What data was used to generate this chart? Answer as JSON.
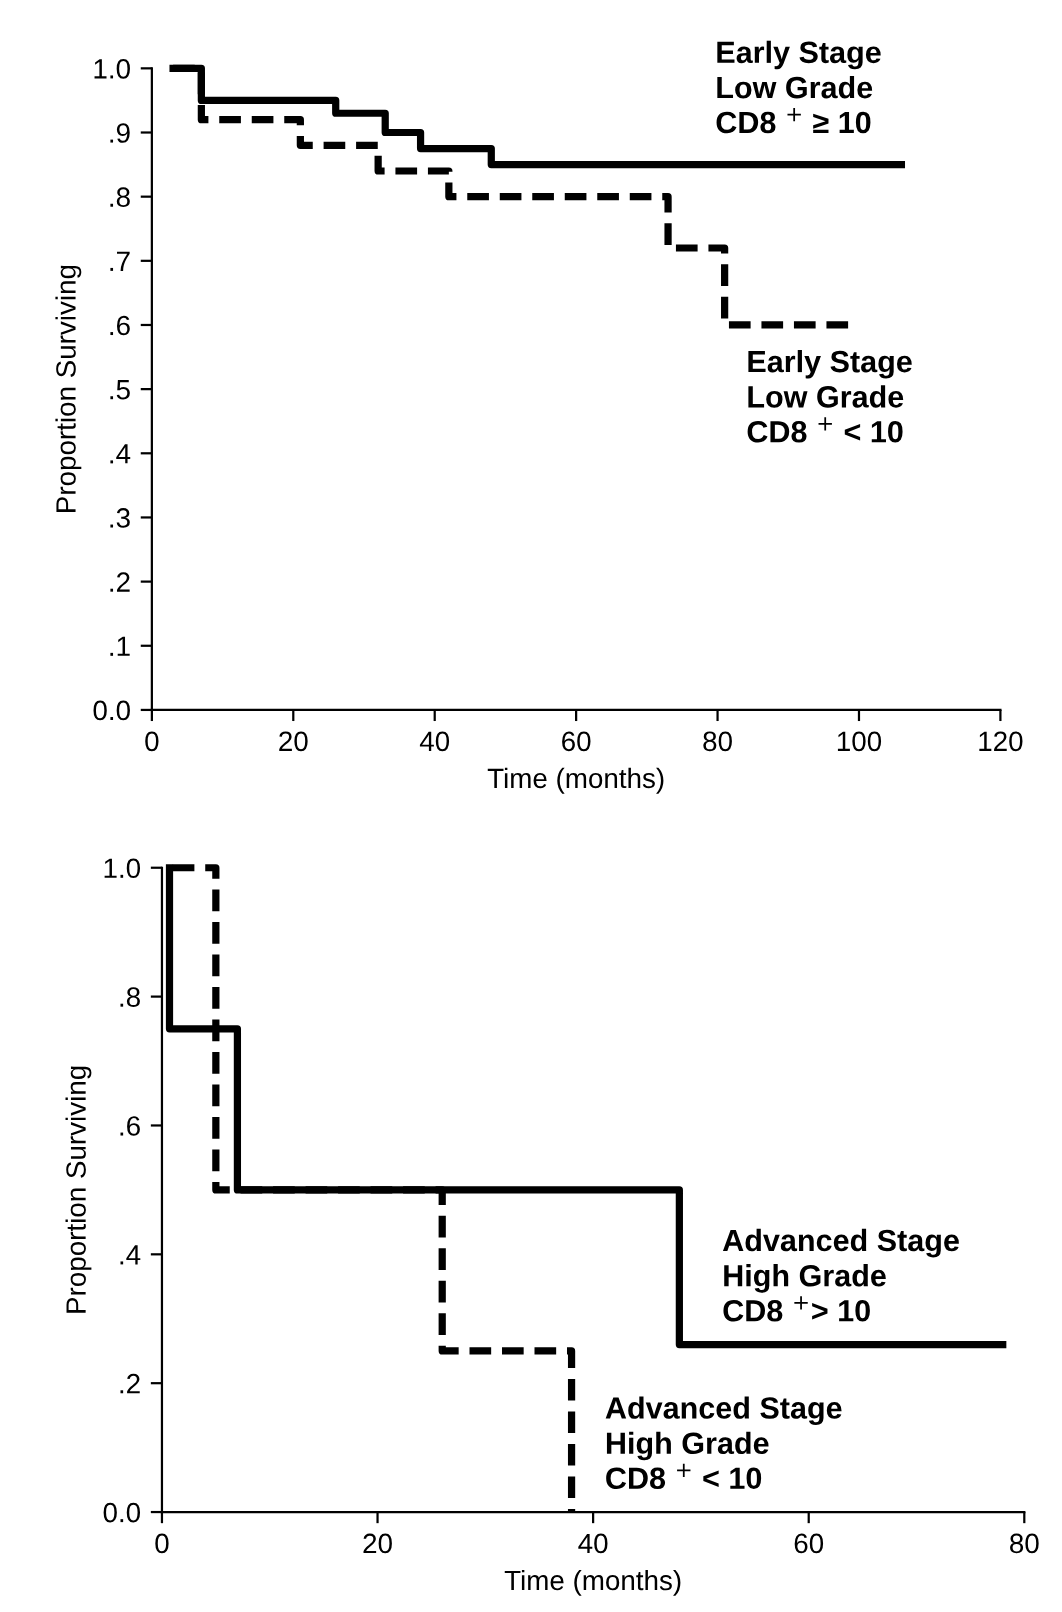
{
  "chart_data": [
    {
      "type": "step",
      "xlabel": "Time (months)",
      "ylabel": "Proportion Surviving",
      "xlim": [
        0,
        120
      ],
      "ylim": [
        0,
        1.0
      ],
      "xticks": [
        0,
        20,
        40,
        60,
        80,
        100,
        120
      ],
      "yticks": [
        {
          "value": 0,
          "label": "0.0"
        },
        {
          "value": 0.1,
          "label": ".1"
        },
        {
          "value": 0.2,
          "label": ".2"
        },
        {
          "value": 0.3,
          "label": ".3"
        },
        {
          "value": 0.4,
          "label": ".4"
        },
        {
          "value": 0.5,
          "label": ".5"
        },
        {
          "value": 0.6,
          "label": ".6"
        },
        {
          "value": 0.7,
          "label": ".7"
        },
        {
          "value": 0.8,
          "label": ".8"
        },
        {
          "value": 0.9,
          "label": ".9"
        },
        {
          "value": 1.0,
          "label": "1.0"
        }
      ],
      "grid": false,
      "legend": false,
      "series": [
        {
          "name": "Early Stage\nLow Grade\nCD8 $^{+}$ ≥ 10",
          "color": "#000000",
          "line_style": "solid",
          "x": [
            3,
            7,
            26,
            33,
            38,
            48,
            106
          ],
          "values": [
            1.0,
            0.95,
            0.93,
            0.9,
            0.875,
            0.85,
            0.85
          ]
        },
        {
          "name": "Early Stage\nLow Grade\nCD8 $^{+}$ < 10",
          "color": "#000000",
          "line_style": "dashed",
          "x": [
            3,
            7,
            21,
            32,
            42,
            73,
            81,
            99
          ],
          "values": [
            1.0,
            0.92,
            0.88,
            0.84,
            0.8,
            0.72,
            0.6,
            0.6
          ]
        }
      ]
    },
    {
      "type": "step",
      "xlabel": "Time (months)",
      "ylabel": "Proportion Surviving",
      "xlim": [
        0,
        80
      ],
      "ylim": [
        0,
        1.0
      ],
      "xticks": [
        0,
        20,
        40,
        60,
        80
      ],
      "yticks": [
        {
          "value": 0,
          "label": "0.0"
        },
        {
          "value": 0.2,
          "label": ".2"
        },
        {
          "value": 0.4,
          "label": ".4"
        },
        {
          "value": 0.6,
          "label": ".6"
        },
        {
          "value": 0.8,
          "label": ".8"
        },
        {
          "value": 1.0,
          "label": "1.0"
        }
      ],
      "grid": false,
      "legend": false,
      "series": [
        {
          "name": "Advanced Stage\nHigh Grade\nCD8 $^{+}$> 10",
          "color": "#000000",
          "line_style": "solid",
          "x": [
            0.7,
            0.7,
            7,
            48,
            78
          ],
          "values": [
            1.0,
            0.75,
            0.5,
            0.26,
            0.26
          ]
        },
        {
          "name": "Advanced Stage\nHigh Grade\nCD8 $^{+}$ < 10",
          "color": "#000000",
          "line_style": "dashed",
          "x": [
            1,
            5,
            26,
            38
          ],
          "values": [
            1.0,
            0.5,
            0.25,
            0.0
          ]
        }
      ]
    }
  ]
}
